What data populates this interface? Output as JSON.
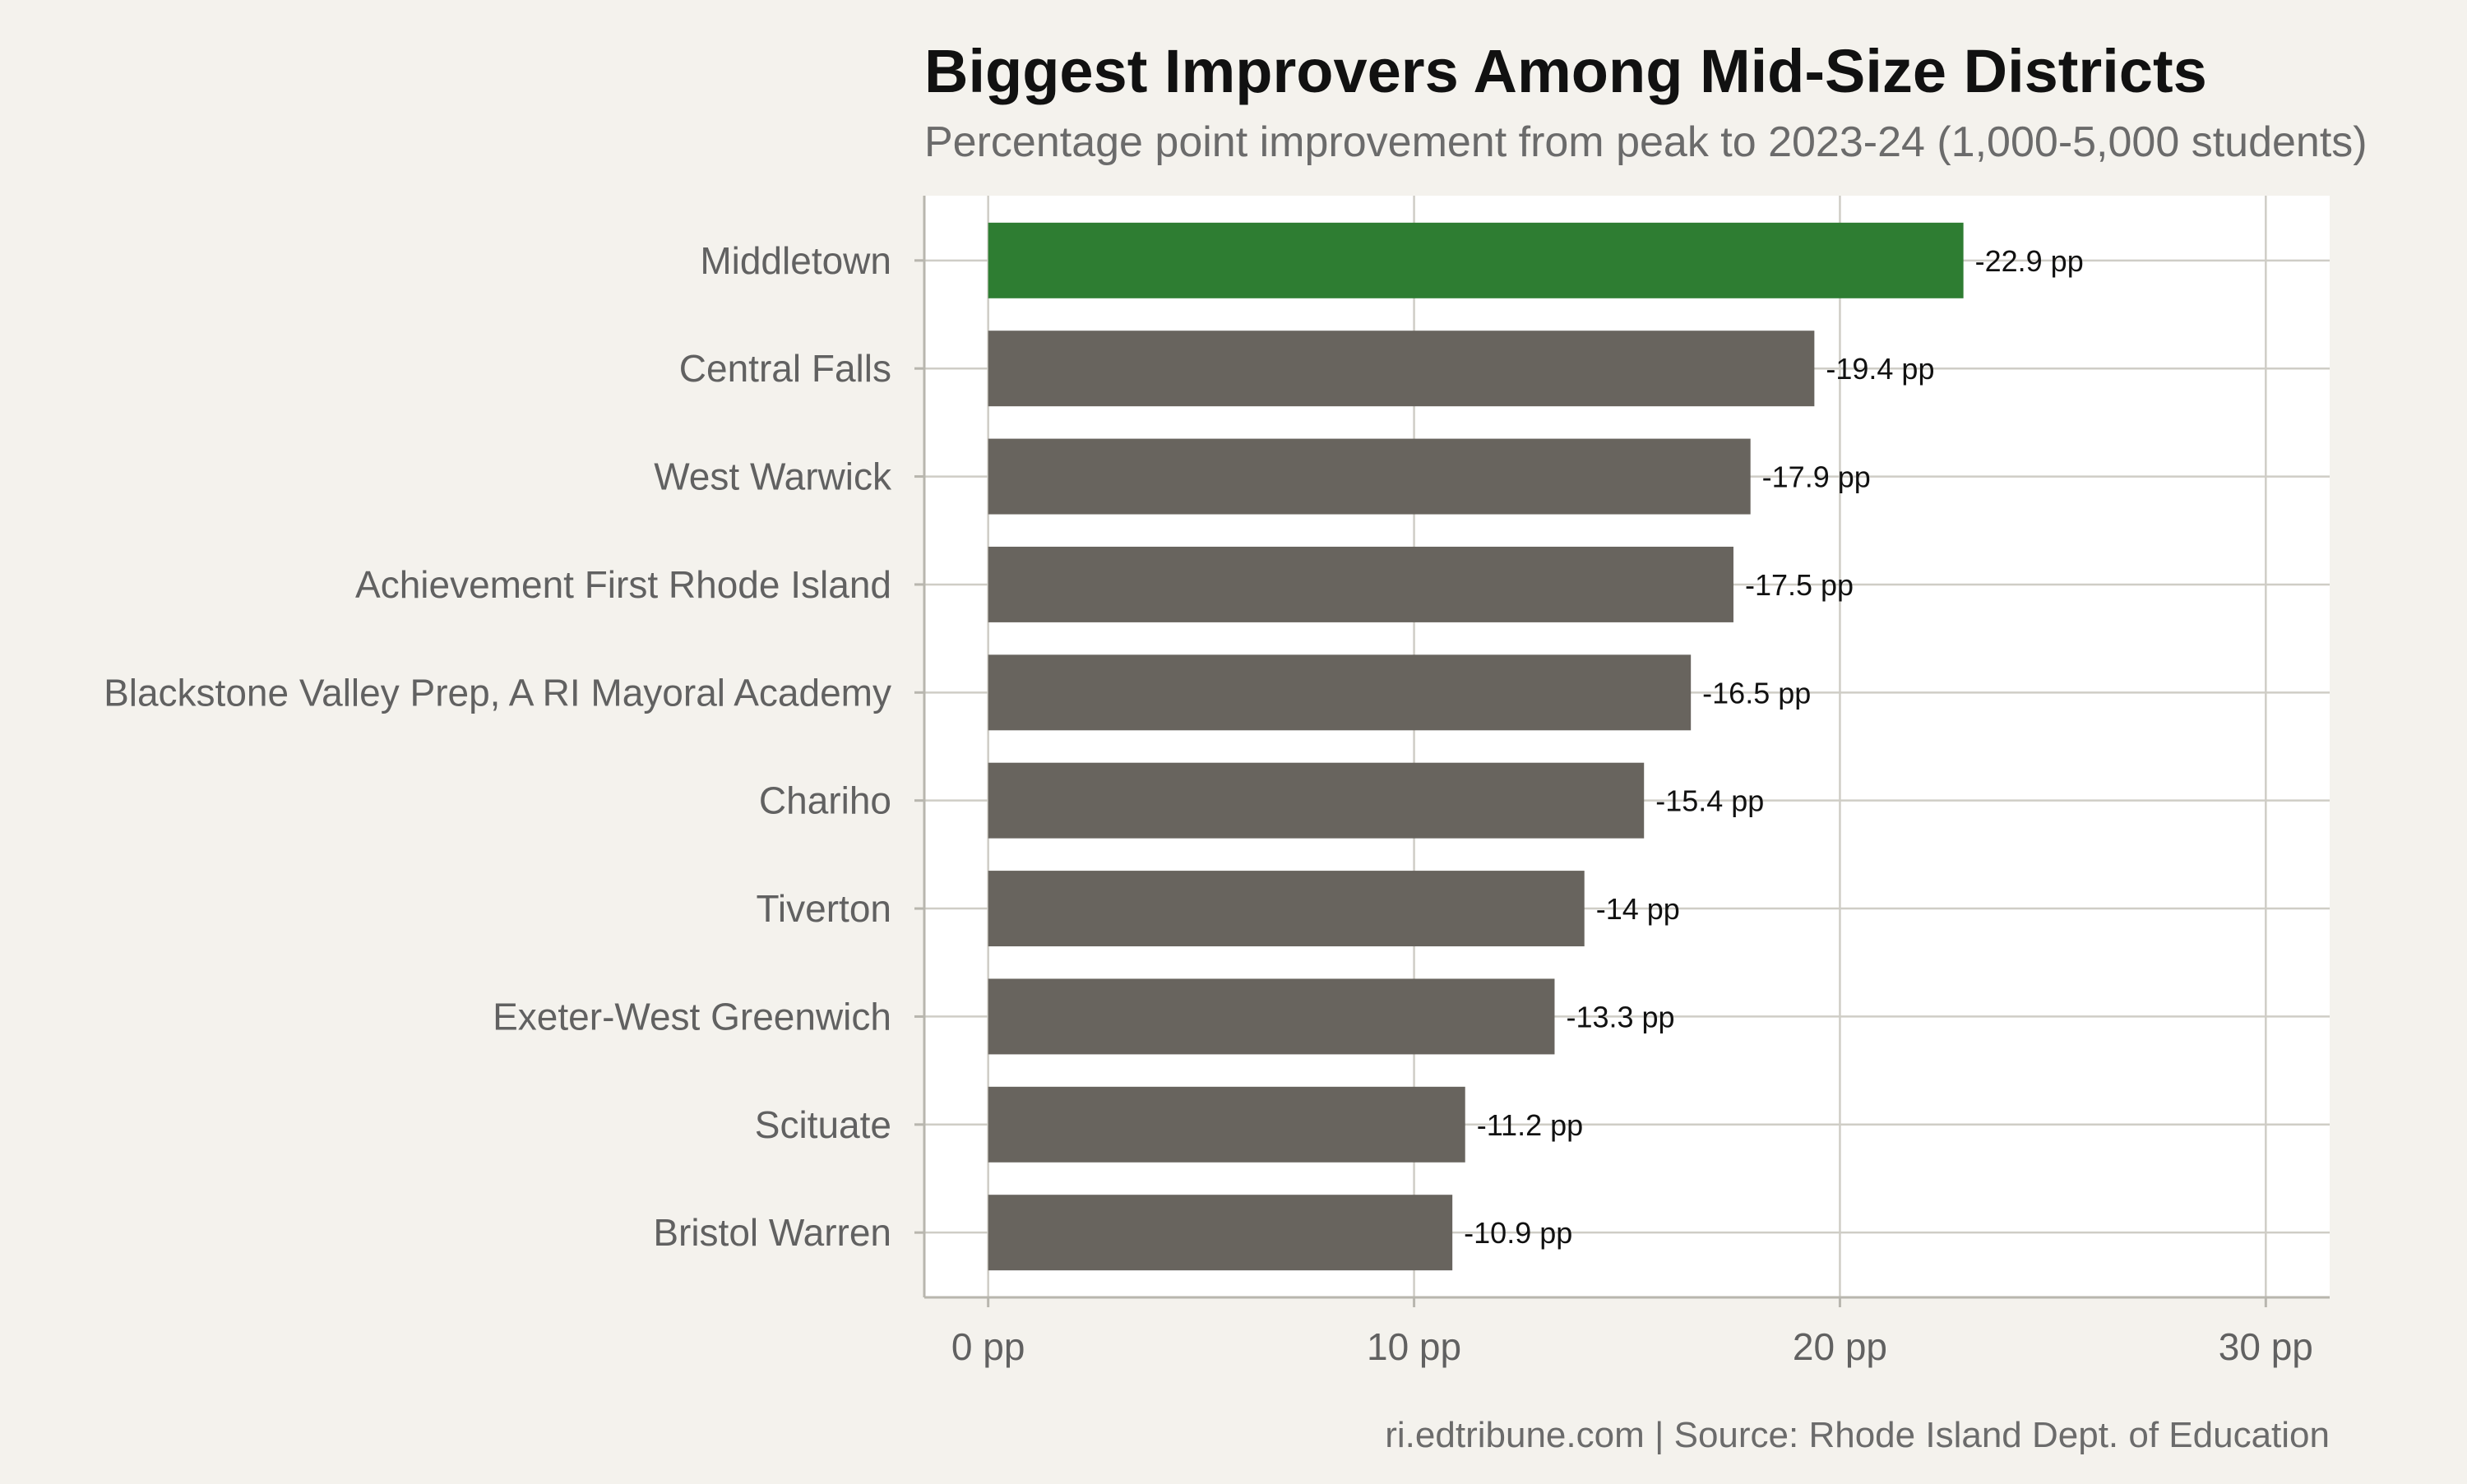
{
  "chart_data": {
    "type": "bar",
    "orientation": "horizontal",
    "title": "Biggest Improvers Among Mid-Size Districts",
    "subtitle": "Percentage point improvement from peak to 2023-24 (1,000-5,000 students)",
    "caption": "ri.edtribune.com | Source: Rhode Island Dept. of Education",
    "categories": [
      "Middletown",
      "Central Falls",
      "West Warwick",
      "Achievement First Rhode Island",
      "Blackstone Valley Prep, A RI Mayoral Academy",
      "Chariho",
      "Tiverton",
      "Exeter-West Greenwich",
      "Scituate",
      "Bristol Warren"
    ],
    "values": [
      22.9,
      19.4,
      17.9,
      17.5,
      16.5,
      15.4,
      14,
      13.3,
      11.2,
      10.9
    ],
    "data_labels": [
      "-22.9 pp",
      "-19.4 pp",
      "-17.9 pp",
      "-17.5 pp",
      "-16.5 pp",
      "-15.4 pp",
      "-14 pp",
      "-13.3 pp",
      "-11.2 pp",
      "-10.9 pp"
    ],
    "x_ticks": [
      0,
      10,
      20,
      30
    ],
    "x_tick_labels": [
      "0 pp",
      "10 pp",
      "20 pp",
      "30 pp"
    ],
    "xlim": [
      -1.5,
      31.5
    ],
    "xlabel": "",
    "ylabel": "",
    "grid": true,
    "legend": "none",
    "highlight_index": 0,
    "colors": {
      "highlight": "#2e7d32",
      "bar": "#68645e",
      "panel": "#ffffff",
      "background": "#f4f2ed"
    }
  }
}
